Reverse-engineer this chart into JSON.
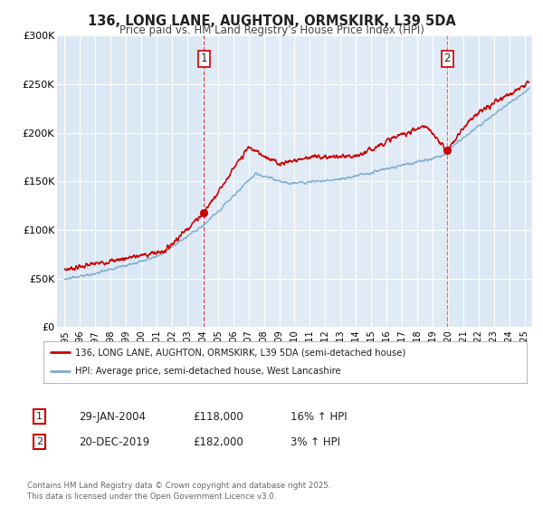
{
  "title": "136, LONG LANE, AUGHTON, ORMSKIRK, L39 5DA",
  "subtitle": "Price paid vs. HM Land Registry's House Price Index (HPI)",
  "background_color": "#ffffff",
  "plot_bg_color": "#dce9f5",
  "plot_bg_color2": "#e8f0f8",
  "grid_color": "#ffffff",
  "red_line_color": "#cc0000",
  "blue_line_color": "#7aaad0",
  "marker1_date": 2004.08,
  "marker2_date": 2019.97,
  "marker1_value": 118000,
  "marker2_value": 182000,
  "ylim_min": 0,
  "ylim_max": 300000,
  "xlim_min": 1994.5,
  "xlim_max": 2025.5,
  "legend_label_red": "136, LONG LANE, AUGHTON, ORMSKIRK, L39 5DA (semi-detached house)",
  "legend_label_blue": "HPI: Average price, semi-detached house, West Lancashire",
  "table_row1": [
    "1",
    "29-JAN-2004",
    "£118,000",
    "16% ↑ HPI"
  ],
  "table_row2": [
    "2",
    "20-DEC-2019",
    "£182,000",
    "3% ↑ HPI"
  ],
  "footer": "Contains HM Land Registry data © Crown copyright and database right 2025.\nThis data is licensed under the Open Government Licence v3.0.",
  "ytick_labels": [
    "£0",
    "£50K",
    "£100K",
    "£150K",
    "£200K",
    "£250K",
    "£300K"
  ],
  "ytick_values": [
    0,
    50000,
    100000,
    150000,
    200000,
    250000,
    300000
  ],
  "xtick_values": [
    1995,
    1996,
    1997,
    1998,
    1999,
    2000,
    2001,
    2002,
    2003,
    2004,
    2005,
    2006,
    2007,
    2008,
    2009,
    2010,
    2011,
    2012,
    2013,
    2014,
    2015,
    2016,
    2017,
    2018,
    2019,
    2020,
    2021,
    2022,
    2023,
    2024,
    2025
  ]
}
